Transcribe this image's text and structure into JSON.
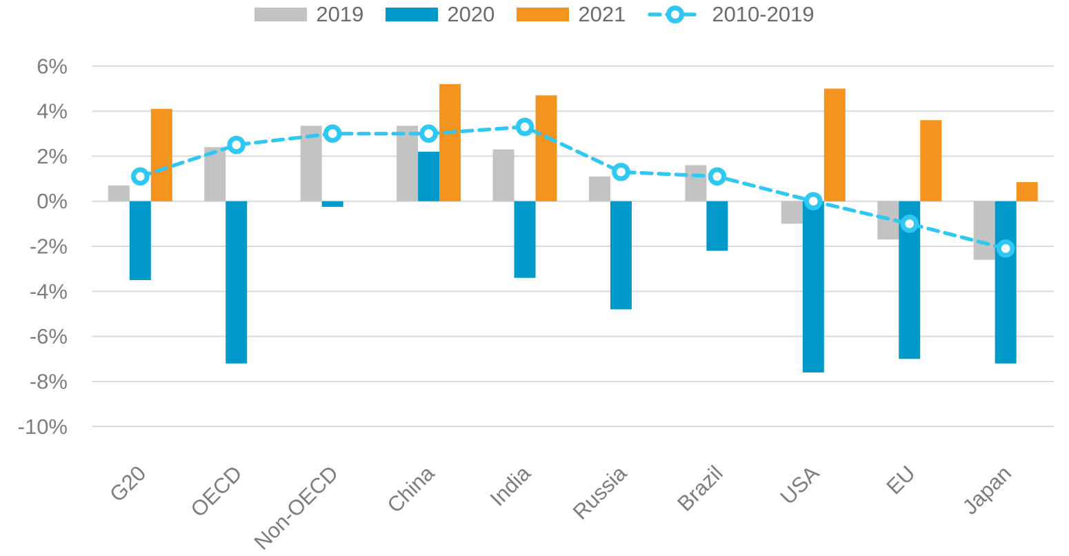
{
  "chart_data": {
    "type": "bar",
    "subtype": "grouped bars with dashed trend line overlay",
    "title": "",
    "categories": [
      "G20",
      "OECD",
      "Non-OECD",
      "China",
      "India",
      "Russia",
      "Brazil",
      "USA",
      "EU",
      "Japan"
    ],
    "series": [
      {
        "name": "2019",
        "type": "bar",
        "color": "#c3c3c3",
        "values": [
          0.7,
          2.4,
          3.35,
          3.35,
          2.3,
          1.1,
          1.6,
          -1.0,
          -1.7,
          -2.6
        ]
      },
      {
        "name": "2020",
        "type": "bar",
        "color": "#0099c9",
        "values": [
          -3.5,
          -7.2,
          -0.25,
          2.2,
          -3.4,
          -4.8,
          -2.2,
          -7.6,
          -7.0,
          -7.2
        ]
      },
      {
        "name": "2021",
        "type": "bar",
        "color": "#f2941f",
        "values": [
          4.1,
          null,
          null,
          5.2,
          4.7,
          null,
          null,
          5.0,
          3.6,
          0.85
        ]
      },
      {
        "name": "2010-2019",
        "type": "line",
        "color": "#2fc8f2",
        "marker": "open-circle",
        "line_style": "dashed",
        "values": [
          1.1,
          2.5,
          3.0,
          3.0,
          3.3,
          1.3,
          1.1,
          0.0,
          -1.0,
          -2.1
        ]
      }
    ],
    "y_axis": {
      "min": -10,
      "max": 6,
      "step": 2,
      "unit": "%",
      "tick_labels": [
        "6%",
        "4%",
        "2%",
        "0%",
        "-2%",
        "-4%",
        "-6%",
        "-8%",
        "-10%"
      ]
    },
    "x_axis": {
      "label_rotation_deg": -45
    },
    "grid": true,
    "legend_position": "top-center",
    "colors": {
      "gridline": "#d9d9d9",
      "axis_text": "#7d7d7d",
      "legend_text": "#6b6b6b",
      "marker_fill": "#ffffff",
      "background": "#ffffff"
    }
  }
}
